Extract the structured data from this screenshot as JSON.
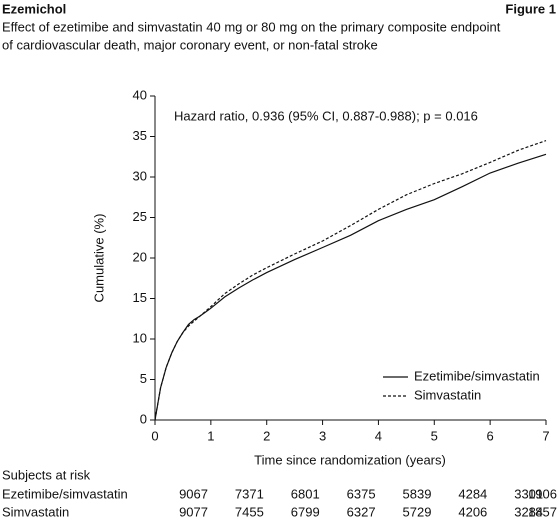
{
  "chart_data": {
    "type": "line",
    "header": "Ezemichol",
    "figure_label": "Figure 1",
    "title": [
      "Effect of ezetimibe and simvastatin 40 mg or 80 mg on the primary composite endpoint",
      "of cardiovascular death, major coronary event, or non-fatal stroke"
    ],
    "annotation": "Hazard ratio, 0.936 (95% CI, 0.887-0.988); p = 0.016",
    "x_label": "Time since randomization (years)",
    "y_label": "Cumulative (%)",
    "x": [
      0,
      0.05,
      0.1,
      0.2,
      0.3,
      0.4,
      0.5,
      0.6,
      0.7,
      0.8,
      0.9,
      1.0,
      1.25,
      1.5,
      1.75,
      2,
      2.5,
      3,
      3.5,
      4,
      4.5,
      5,
      5.5,
      6,
      6.5,
      7
    ],
    "series": [
      {
        "name": "Ezetimibe/simvastatin",
        "color": "#111111",
        "dash": "solid",
        "values": [
          0,
          2,
          4,
          6.5,
          8.3,
          9.7,
          10.8,
          11.8,
          12.4,
          12.8,
          13.3,
          13.8,
          15.2,
          16.3,
          17.3,
          18.2,
          19.8,
          21.3,
          22.8,
          24.6,
          26,
          27.2,
          28.8,
          30.5,
          31.7,
          32.8
        ]
      },
      {
        "name": "Simvastatin",
        "color": "#111111",
        "dash": "dashed",
        "values": [
          0,
          2,
          4,
          6.5,
          8.3,
          9.7,
          10.8,
          11.6,
          12.2,
          12.8,
          13.4,
          14.0,
          15.6,
          16.8,
          17.9,
          18.8,
          20.5,
          22.1,
          24.0,
          26.0,
          27.8,
          29.2,
          30.4,
          31.8,
          33.3,
          34.5
        ]
      }
    ],
    "xlim": [
      0,
      7
    ],
    "xticks": [
      0,
      1,
      2,
      3,
      4,
      5,
      6,
      7
    ],
    "ylim": [
      0,
      40
    ],
    "yticks": [
      0,
      5,
      10,
      15,
      20,
      25,
      30,
      35,
      40
    ],
    "legend": "lower right",
    "risk_table": {
      "title": "Subjects at risk",
      "rows": [
        {
          "name": "Ezetimibe/simvastatin",
          "values": [
            9067,
            7371,
            6801,
            6375,
            5839,
            4284,
            3301,
            1906
          ]
        },
        {
          "name": "Simvastatin",
          "values": [
            9077,
            7455,
            6799,
            6327,
            5729,
            4206,
            3284,
            1857
          ]
        }
      ]
    }
  }
}
